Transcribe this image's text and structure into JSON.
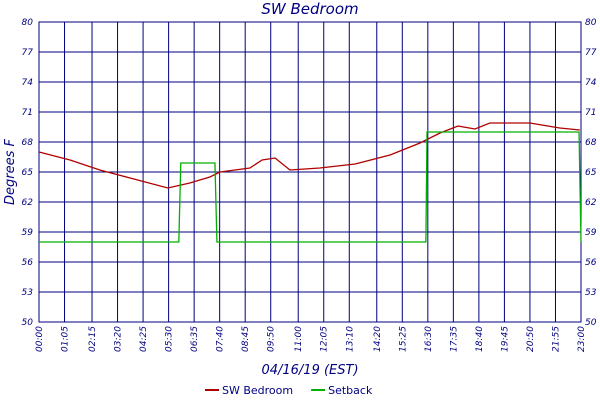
{
  "chart_data": {
    "type": "line",
    "title": "SW Bedroom",
    "y_label": "Degrees F",
    "x_label": "04/16/19 (EST)",
    "xlim": [
      "00:00",
      "23:00"
    ],
    "xticks": [
      "00:00",
      "01:05",
      "02:15",
      "03:20",
      "04:25",
      "05:30",
      "06:35",
      "07:40",
      "08:45",
      "09:50",
      "11:00",
      "12:05",
      "13:10",
      "14:20",
      "15:25",
      "16:30",
      "17:35",
      "18:40",
      "19:45",
      "20:50",
      "21:55",
      "23:00"
    ],
    "ylim": [
      50,
      80
    ],
    "yticks": [
      80,
      77,
      74,
      71,
      68,
      65,
      62,
      59,
      56,
      53,
      50
    ],
    "grid": true,
    "series": [
      {
        "name": "SW Bedroom",
        "color": "#b00000",
        "x": [
          "00:00",
          "01:19",
          "02:35",
          "03:52",
          "05:28",
          "06:24",
          "07:15",
          "07:41",
          "08:19",
          "08:57",
          "09:28",
          "10:01",
          "10:39",
          "11:55",
          "13:25",
          "14:54",
          "16:10",
          "17:01",
          "17:47",
          "18:30",
          "19:08",
          "20:50",
          "22:06",
          "22:57"
        ],
        "values": [
          67.0,
          66.2,
          65.2,
          64.4,
          63.4,
          63.9,
          64.5,
          65.0,
          65.2,
          65.4,
          66.2,
          66.4,
          65.2,
          65.4,
          65.8,
          66.7,
          67.9,
          68.9,
          69.6,
          69.3,
          69.9,
          69.9,
          69.4,
          69.2
        ]
      },
      {
        "name": "Setback",
        "color": "#00b000",
        "x": [
          "00:00",
          "05:56",
          "06:01",
          "07:28",
          "07:33",
          "16:25",
          "16:28",
          "22:55",
          "23:00"
        ],
        "values": [
          58.0,
          58.0,
          65.9,
          65.9,
          58.0,
          58.0,
          69.0,
          69.0,
          58.0
        ]
      }
    ]
  }
}
